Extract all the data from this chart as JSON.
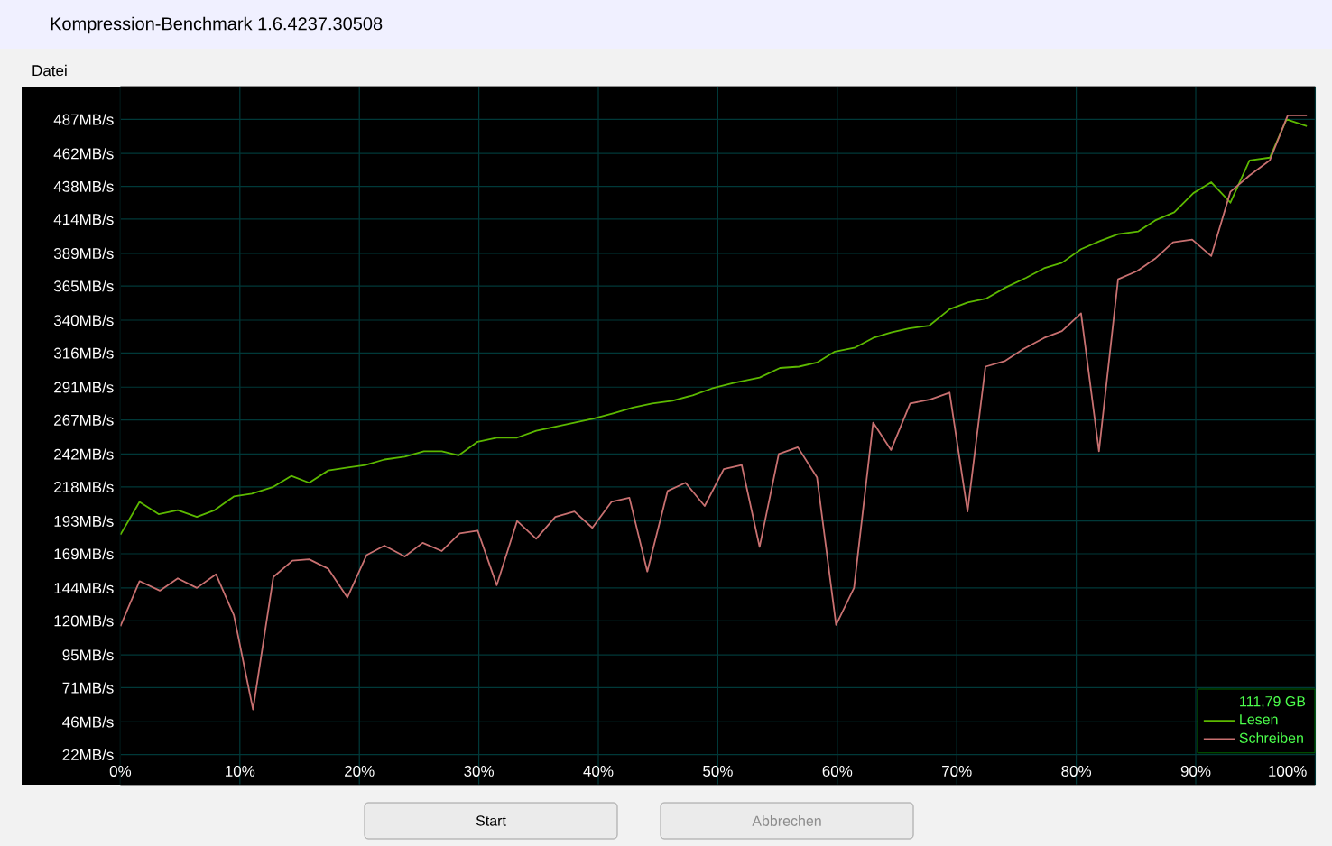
{
  "chart_data": {
    "type": "line",
    "title": "Kompression-Benchmark 1.6.4237.30508",
    "xlim": [
      0,
      100
    ],
    "xticks": [
      {
        "value": 0,
        "label": "0%"
      },
      {
        "value": 10,
        "label": "10%"
      },
      {
        "value": 20,
        "label": "20%"
      },
      {
        "value": 30,
        "label": "30%"
      },
      {
        "value": 40,
        "label": "40%"
      },
      {
        "value": 50,
        "label": "50%"
      },
      {
        "value": 60,
        "label": "60%"
      },
      {
        "value": 70,
        "label": "70%"
      },
      {
        "value": 80,
        "label": "80%"
      },
      {
        "value": 90,
        "label": "90%"
      },
      {
        "value": 100,
        "label": "100%"
      }
    ],
    "ylim": [
      0,
      511
    ],
    "yticks": [
      {
        "value": 22,
        "label": "22MB/s"
      },
      {
        "value": 46,
        "label": "46MB/s"
      },
      {
        "value": 71,
        "label": "71MB/s"
      },
      {
        "value": 95,
        "label": "95MB/s"
      },
      {
        "value": 120,
        "label": "120MB/s"
      },
      {
        "value": 144,
        "label": "144MB/s"
      },
      {
        "value": 169,
        "label": "169MB/s"
      },
      {
        "value": 193,
        "label": "193MB/s"
      },
      {
        "value": 218,
        "label": "218MB/s"
      },
      {
        "value": 242,
        "label": "242MB/s"
      },
      {
        "value": 267,
        "label": "267MB/s"
      },
      {
        "value": 291,
        "label": "291MB/s"
      },
      {
        "value": 316,
        "label": "316MB/s"
      },
      {
        "value": 340,
        "label": "340MB/s"
      },
      {
        "value": 365,
        "label": "365MB/s"
      },
      {
        "value": 389,
        "label": "389MB/s"
      },
      {
        "value": 414,
        "label": "414MB/s"
      },
      {
        "value": 438,
        "label": "438MB/s"
      },
      {
        "value": 462,
        "label": "462MB/s"
      },
      {
        "value": 487,
        "label": "487MB/s"
      }
    ],
    "grid": true,
    "legend": "bottom right",
    "legend_title": "111,79 GB",
    "series": [
      {
        "name": "Lesen",
        "color": "#5cb800",
        "x": [
          0,
          1.6,
          3.2,
          4.8,
          6.4,
          7.9,
          9.5,
          11,
          12.8,
          14.3,
          15.8,
          17.4,
          18.9,
          20.5,
          22.1,
          23.8,
          25.4,
          26.9,
          28.3,
          29.9,
          31.5,
          33.2,
          34.8,
          36.4,
          38,
          39.6,
          41.3,
          42.9,
          44.5,
          46.2,
          47.9,
          49.5,
          51.3,
          53.5,
          55.2,
          56.8,
          58.3,
          59.8,
          61.5,
          63,
          64.5,
          66,
          67.7,
          69.4,
          70.9,
          72.5,
          74.1,
          75.8,
          77.3,
          78.8,
          80.4,
          82,
          83.5,
          85.2,
          86.6,
          88.2,
          89.8,
          91.3,
          92.9,
          94.5,
          96.2,
          97.6,
          99.3
        ],
        "values": [
          183,
          207,
          198,
          201,
          196,
          201,
          211,
          213,
          218,
          226,
          221,
          230,
          232,
          234,
          238,
          240,
          244,
          244,
          241,
          251,
          254,
          254,
          259,
          262,
          265,
          268,
          272,
          276,
          279,
          281,
          285,
          290,
          294,
          298,
          305,
          306,
          309,
          317,
          320,
          327,
          331,
          334,
          336,
          348,
          353,
          356,
          364,
          371,
          378,
          382,
          392,
          398,
          403,
          405,
          413,
          419,
          433,
          441,
          426,
          457,
          459,
          487,
          482
        ]
      },
      {
        "name": "Schreiben",
        "color": "#c87070",
        "x": [
          0,
          1.6,
          3.3,
          4.8,
          6.4,
          8,
          9.5,
          11.1,
          12.8,
          14.4,
          15.8,
          17.4,
          19,
          20.6,
          22.1,
          23.8,
          25.3,
          26.9,
          28.4,
          29.9,
          31.5,
          33.2,
          34.8,
          36.4,
          38,
          39.5,
          41.1,
          42.6,
          44.1,
          45.8,
          47.3,
          48.9,
          50.5,
          52,
          53.5,
          55.1,
          56.7,
          58.3,
          59.9,
          61.4,
          63,
          64.5,
          66.1,
          67.8,
          69.4,
          70.9,
          72.4,
          74,
          75.6,
          77.3,
          78.8,
          80.4,
          81.9,
          83.5,
          85.1,
          86.6,
          88.1,
          89.7,
          91.3,
          92.9,
          94.5,
          96.2,
          97.7,
          99.3
        ],
        "values": [
          116,
          149,
          142,
          151,
          144,
          154,
          124,
          55,
          152,
          164,
          165,
          158,
          137,
          168,
          175,
          167,
          177,
          171,
          184,
          186,
          146,
          193,
          180,
          196,
          200,
          188,
          207,
          210,
          156,
          215,
          221,
          204,
          231,
          234,
          174,
          242,
          247,
          225,
          117,
          144,
          265,
          245,
          279,
          282,
          287,
          200,
          306,
          310,
          319,
          327,
          332,
          345,
          244,
          370,
          376,
          385,
          397,
          399,
          387,
          434,
          446,
          457,
          490,
          490
        ]
      }
    ],
    "annotations": [
      "Datei",
      "Start",
      "Abbrechen"
    ]
  }
}
